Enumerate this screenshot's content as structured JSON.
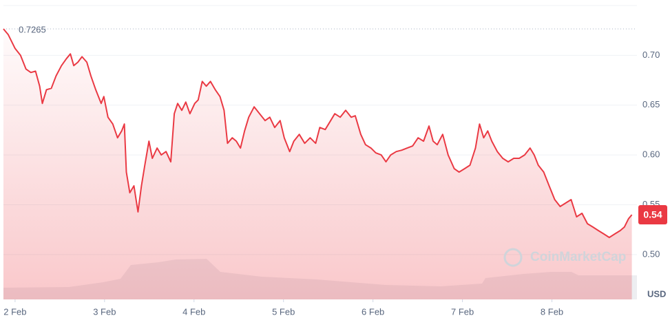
{
  "chart_data": {
    "type": "line",
    "color": "#ea3943",
    "x": [
      -0.13,
      -0.076,
      0,
      0.061,
      0.122,
      0.176,
      0.229,
      0.275,
      0.305,
      0.351,
      0.405,
      0.458,
      0.519,
      0.573,
      0.618,
      0.656,
      0.702,
      0.748,
      0.802,
      0.847,
      0.901,
      0.962,
      0.992,
      1.038,
      1.092,
      1.145,
      1.191,
      1.221,
      1.244,
      1.282,
      1.328,
      1.374,
      1.412,
      1.45,
      1.496,
      1.534,
      1.588,
      1.634,
      1.687,
      1.74,
      1.779,
      1.817,
      1.863,
      1.908,
      1.954,
      2.008,
      2.046,
      2.092,
      2.137,
      2.183,
      2.237,
      2.29,
      2.336,
      2.374,
      2.427,
      2.473,
      2.519,
      2.565,
      2.611,
      2.672,
      2.733,
      2.794,
      2.847,
      2.901,
      2.962,
      3.008,
      3.069,
      3.115,
      3.176,
      3.237,
      3.298,
      3.359,
      3.405,
      3.466,
      3.527,
      3.573,
      3.634,
      3.695,
      3.756,
      3.802,
      3.863,
      3.916,
      3.977,
      4.031,
      4.092,
      4.145,
      4.198,
      4.26,
      4.321,
      4.382,
      4.443,
      4.504,
      4.565,
      4.626,
      4.672,
      4.718,
      4.779,
      4.84,
      4.908,
      4.962,
      5.023,
      5.084,
      5.145,
      5.191,
      5.237,
      5.282,
      5.328,
      5.389,
      5.45,
      5.511,
      5.573,
      5.634,
      5.695,
      5.756,
      5.802,
      5.847,
      5.908,
      5.969,
      6.031,
      6.092,
      6.153,
      6.214,
      6.275,
      6.336,
      6.397,
      6.458,
      6.519,
      6.58,
      6.641,
      6.702,
      6.763,
      6.809,
      6.855,
      6.893
    ],
    "values": [
      0.7265,
      0.7207,
      0.7069,
      0.7,
      0.6862,
      0.6828,
      0.6841,
      0.669,
      0.6517,
      0.6655,
      0.6669,
      0.6793,
      0.6897,
      0.6966,
      0.7014,
      0.6897,
      0.6931,
      0.6986,
      0.6931,
      0.6793,
      0.6655,
      0.6517,
      0.6586,
      0.6379,
      0.631,
      0.6172,
      0.6241,
      0.631,
      0.5828,
      0.5621,
      0.569,
      0.5428,
      0.569,
      0.5897,
      0.6138,
      0.5966,
      0.6069,
      0.6,
      0.6034,
      0.5931,
      0.6414,
      0.6517,
      0.6448,
      0.6531,
      0.6414,
      0.6517,
      0.6552,
      0.6738,
      0.669,
      0.6738,
      0.6655,
      0.6586,
      0.6448,
      0.6117,
      0.6172,
      0.6138,
      0.6069,
      0.6241,
      0.6379,
      0.6483,
      0.6414,
      0.6345,
      0.6379,
      0.6276,
      0.6345,
      0.6172,
      0.6034,
      0.6138,
      0.6207,
      0.6117,
      0.6172,
      0.6117,
      0.6276,
      0.6255,
      0.6345,
      0.6414,
      0.6379,
      0.6448,
      0.6379,
      0.6393,
      0.6207,
      0.6103,
      0.6069,
      0.6021,
      0.6,
      0.5931,
      0.6,
      0.6034,
      0.6048,
      0.6069,
      0.609,
      0.6172,
      0.6138,
      0.629,
      0.6138,
      0.6103,
      0.6207,
      0.6,
      0.5862,
      0.5828,
      0.5862,
      0.5897,
      0.6069,
      0.631,
      0.6172,
      0.6241,
      0.6138,
      0.6034,
      0.5966,
      0.5931,
      0.5966,
      0.5966,
      0.6,
      0.6069,
      0.6,
      0.5897,
      0.5828,
      0.569,
      0.5552,
      0.5483,
      0.5517,
      0.5552,
      0.5379,
      0.5414,
      0.531,
      0.5276,
      0.5241,
      0.5207,
      0.5172,
      0.5207,
      0.5241,
      0.5276,
      0.5359,
      0.54
    ],
    "xlim": [
      -0.13,
      6.95
    ],
    "xticks": [
      {
        "value": 0,
        "label": "2 Feb"
      },
      {
        "value": 1,
        "label": "3 Feb"
      },
      {
        "value": 2,
        "label": "4 Feb"
      },
      {
        "value": 3,
        "label": "5 Feb"
      },
      {
        "value": 4,
        "label": "6 Feb"
      },
      {
        "value": 5,
        "label": "7 Feb"
      },
      {
        "value": 6,
        "label": "8 Feb"
      }
    ],
    "ylim": [
      0.455,
      0.75
    ],
    "yticks": [
      {
        "value": 0.5,
        "label": "0.50"
      },
      0.55,
      {
        "value": 0.6,
        "label": "0.60"
      },
      0.65,
      {
        "value": 0.7,
        "label": "0.70"
      }
    ],
    "grid": true,
    "reference_line": 0.7265,
    "last_price": 0.54,
    "currency_label": "USD",
    "watermark": "CoinMarketCap"
  }
}
